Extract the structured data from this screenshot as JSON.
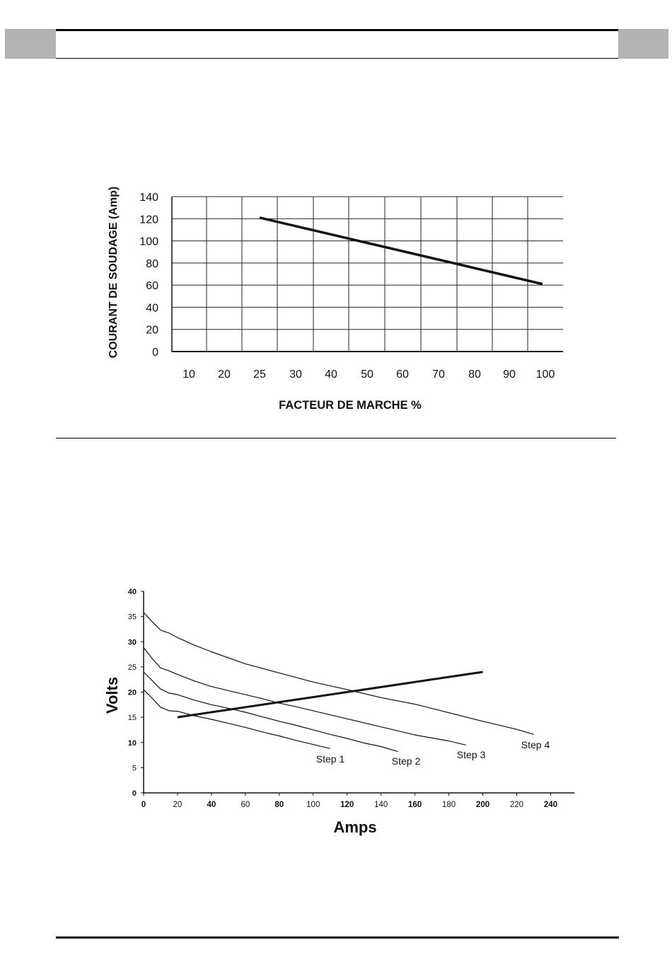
{
  "chart_data": [
    {
      "type": "line",
      "ylabel": "COURANT DE SOUDAGE (Amp)",
      "xlabel": "FACTEUR DE MARCHE %",
      "categories": [
        "10",
        "20",
        "25",
        "30",
        "40",
        "50",
        "60",
        "70",
        "80",
        "90",
        "100"
      ],
      "yticks": [
        0,
        20,
        40,
        60,
        80,
        100,
        120,
        140
      ],
      "ylim": [
        0,
        140
      ],
      "grid": true,
      "series": [
        {
          "points": [
            {
              "x": "25",
              "y": 121
            },
            {
              "x": "100",
              "y": 61
            }
          ]
        }
      ]
    },
    {
      "type": "line",
      "ylabel": "Volts",
      "xlabel": "Amps",
      "xticks": [
        0,
        20,
        40,
        60,
        80,
        100,
        120,
        140,
        160,
        180,
        200,
        220,
        240
      ],
      "yticks": [
        0,
        5,
        10,
        15,
        20,
        25,
        30,
        35,
        40
      ],
      "xlim": [
        0,
        254
      ],
      "ylim": [
        0,
        40
      ],
      "grid": false,
      "series": [
        {
          "name": "Step 1",
          "x": [
            0,
            5,
            10,
            15,
            20,
            30,
            40,
            50,
            60,
            70,
            80,
            90,
            100,
            110
          ],
          "y": [
            20.5,
            18.8,
            17,
            16.3,
            16.2,
            15.3,
            14.6,
            13.8,
            13,
            12.1,
            11.3,
            10.4,
            9.6,
            8.8
          ]
        },
        {
          "name": "Step 2",
          "x": [
            0,
            5,
            10,
            15,
            20,
            30,
            40,
            50,
            60,
            70,
            80,
            90,
            100,
            110,
            120,
            130,
            140,
            150
          ],
          "y": [
            24,
            22.3,
            20.6,
            19.8,
            19.5,
            18.4,
            17.5,
            16.8,
            16,
            15.1,
            14.2,
            13.4,
            12.5,
            11.6,
            10.8,
            9.9,
            9.2,
            8.2
          ]
        },
        {
          "name": "Step 3",
          "x": [
            0,
            5,
            10,
            15,
            20,
            30,
            40,
            50,
            60,
            70,
            80,
            90,
            100,
            120,
            140,
            160,
            180,
            190
          ],
          "y": [
            28.8,
            26.7,
            24.8,
            24.2,
            23.5,
            22.2,
            21.1,
            20.3,
            19.5,
            18.7,
            17.8,
            17.1,
            16.3,
            14.7,
            13.1,
            11.5,
            10.3,
            9.5
          ]
        },
        {
          "name": "Step 4",
          "x": [
            0,
            5,
            10,
            15,
            20,
            30,
            40,
            60,
            80,
            100,
            120,
            140,
            160,
            180,
            200,
            220,
            230
          ],
          "y": [
            35.8,
            34,
            32.3,
            31.7,
            30.8,
            29.3,
            28,
            25.6,
            23.8,
            22,
            20.5,
            18.9,
            17.6,
            15.9,
            14.2,
            12.6,
            11.6
          ]
        },
        {
          "x": [
            20,
            200
          ],
          "y": [
            15,
            24
          ]
        }
      ],
      "annotations": [
        "Step 1",
        "Step 2",
        "Step 3",
        "Step 4"
      ]
    }
  ]
}
